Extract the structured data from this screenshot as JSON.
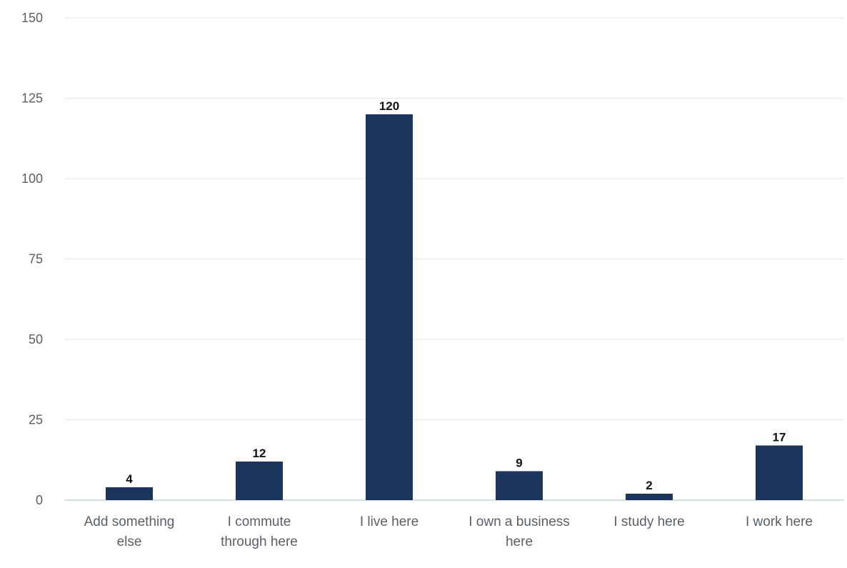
{
  "chart_data": {
    "type": "bar",
    "categories": [
      [
        "Add something",
        "else"
      ],
      [
        "I commute",
        "through here"
      ],
      [
        "I live here"
      ],
      [
        "I own a business",
        "here"
      ],
      [
        "I study here"
      ],
      [
        "I work here"
      ]
    ],
    "values": [
      4,
      12,
      120,
      9,
      2,
      17
    ],
    "data_labels": [
      "4",
      "12",
      "120",
      "9",
      "2",
      "17"
    ],
    "yticks": [
      0,
      25,
      50,
      75,
      100,
      125,
      150
    ],
    "ylim": [
      0,
      150
    ],
    "grid": true,
    "legend": "none",
    "bar_color": "#1b355c",
    "title": "",
    "xlabel": "",
    "ylabel": ""
  }
}
